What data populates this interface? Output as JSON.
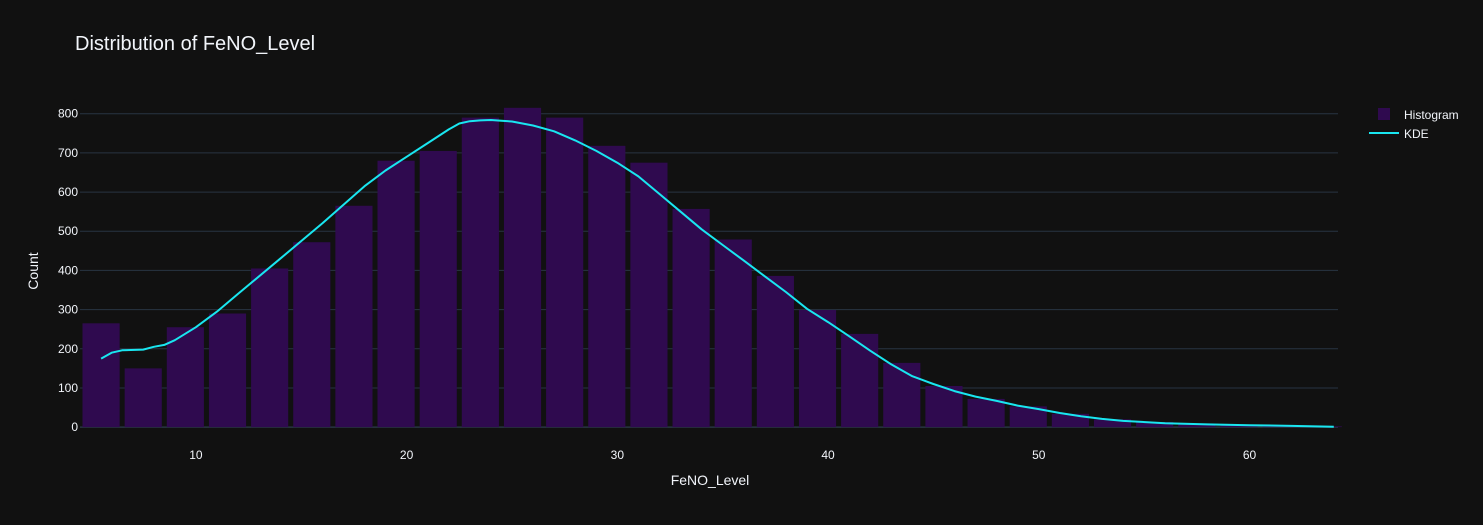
{
  "chart_data": {
    "type": "bar",
    "title": "Distribution of FeNO_Level",
    "xlabel": "FeNO_Level",
    "ylabel": "Count",
    "xlim": [
      4.5,
      64.2
    ],
    "ylim": [
      -15,
      835
    ],
    "x_ticks": [
      10,
      20,
      30,
      40,
      50,
      60
    ],
    "y_ticks": [
      0,
      100,
      200,
      300,
      400,
      500,
      600,
      700,
      800
    ],
    "grid": true,
    "legend_position": "top-right",
    "colors": {
      "background": "#111111",
      "histogram": "#2f0a4f",
      "kde": "#19e6f0",
      "grid": "#283442",
      "text": "#f2f5fa"
    },
    "histogram": {
      "name": "Histogram",
      "bin_width": 2,
      "bin_starts": [
        4.5,
        6.5,
        8.5,
        10.5,
        12.5,
        14.5,
        16.5,
        18.5,
        20.5,
        22.5,
        24.5,
        26.5,
        28.5,
        30.5,
        32.5,
        34.5,
        36.5,
        38.5,
        40.5,
        42.5,
        44.5,
        46.5,
        48.5,
        50.5,
        52.5,
        54.5,
        56.5,
        58.5,
        60.5,
        62.5
      ],
      "values": [
        265,
        150,
        255,
        290,
        405,
        472,
        565,
        680,
        705,
        790,
        815,
        790,
        718,
        675,
        557,
        479,
        386,
        299,
        238,
        164,
        105,
        72,
        53,
        34,
        20,
        13,
        8,
        5,
        3,
        2
      ]
    },
    "kde": {
      "name": "KDE",
      "x": [
        5.5,
        6,
        6.5,
        7.5,
        8,
        8.5,
        9,
        10,
        11,
        12,
        14,
        16,
        18,
        19,
        20,
        21,
        22,
        22.5,
        23,
        23.5,
        24,
        24.5,
        25,
        26,
        27,
        28,
        29,
        30,
        31,
        32,
        33,
        34,
        35,
        36,
        37,
        38,
        39,
        40,
        41,
        42,
        43,
        44,
        45,
        46,
        47,
        48,
        49,
        50,
        51,
        52,
        53,
        54,
        56,
        58,
        60,
        62,
        64
      ],
      "values": [
        175,
        190,
        196,
        198,
        205,
        210,
        222,
        255,
        295,
        340,
        430,
        520,
        615,
        655,
        690,
        725,
        760,
        775,
        781,
        783,
        784,
        782,
        780,
        770,
        755,
        732,
        705,
        675,
        640,
        595,
        550,
        505,
        465,
        425,
        385,
        345,
        302,
        268,
        232,
        195,
        160,
        130,
        110,
        92,
        78,
        67,
        55,
        46,
        36,
        28,
        21,
        16,
        10,
        7,
        5,
        3,
        1
      ]
    }
  }
}
